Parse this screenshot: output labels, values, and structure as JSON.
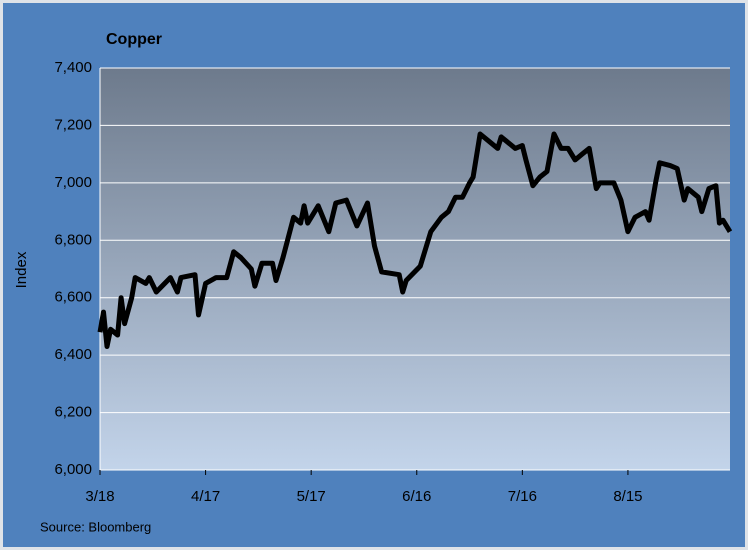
{
  "chart_data": {
    "type": "line",
    "title": "Copper",
    "y_label": "Index",
    "source": "Source: Bloomberg",
    "xlim": [
      "3/18",
      "9/13"
    ],
    "xticks": [
      "3/18",
      "4/17",
      "5/17",
      "6/16",
      "7/16",
      "8/15"
    ],
    "ylim": [
      6000,
      7400
    ],
    "yticks": [
      {
        "value": 6000,
        "label": "6,000"
      },
      {
        "value": 6200,
        "label": "6,200"
      },
      {
        "value": 6400,
        "label": "6,400"
      },
      {
        "value": 6600,
        "label": "6,600"
      },
      {
        "value": 6800,
        "label": "6,800"
      },
      {
        "value": 7000,
        "label": "7,000"
      },
      {
        "value": 7200,
        "label": "7,200"
      },
      {
        "value": 7400,
        "label": "7,400"
      }
    ],
    "grid": true,
    "series": [
      {
        "name": "Copper",
        "color": "#000000",
        "x": [
          "3/18",
          "3/19",
          "3/20",
          "3/21",
          "3/23",
          "3/24",
          "3/25",
          "3/27",
          "3/28",
          "3/31",
          "4/1",
          "4/3",
          "4/7",
          "4/9",
          "4/10",
          "4/14",
          "4/15",
          "4/17",
          "4/20",
          "4/23",
          "4/25",
          "4/27",
          "4/30",
          "5/1",
          "5/3",
          "5/6",
          "5/7",
          "5/9",
          "5/12",
          "5/14",
          "5/15",
          "5/16",
          "5/19",
          "5/22",
          "5/24",
          "5/27",
          "5/30",
          "6/2",
          "6/4",
          "6/6",
          "6/11",
          "6/12",
          "6/13",
          "6/17",
          "6/20",
          "6/23",
          "6/25",
          "6/27",
          "6/29",
          "7/1",
          "7/2",
          "7/4",
          "7/7",
          "7/9",
          "7/10",
          "7/14",
          "7/16",
          "7/17",
          "7/19",
          "7/21",
          "7/23",
          "7/25",
          "7/27",
          "7/29",
          "7/31",
          "8/2",
          "8/4",
          "8/6",
          "8/7",
          "8/11",
          "8/13",
          "8/15",
          "8/17",
          "8/20",
          "8/21",
          "8/23",
          "8/24",
          "8/27",
          "8/29",
          "8/31",
          "9/1",
          "9/4",
          "9/5",
          "9/7",
          "9/9",
          "9/10",
          "9/11",
          "9/13"
        ],
        "values": [
          6480,
          6550,
          6430,
          6490,
          6470,
          6600,
          6510,
          6600,
          6670,
          6650,
          6670,
          6620,
          6670,
          6620,
          6670,
          6680,
          6540,
          6650,
          6670,
          6670,
          6760,
          6740,
          6700,
          6640,
          6720,
          6720,
          6660,
          6740,
          6880,
          6860,
          6920,
          6860,
          6920,
          6830,
          6930,
          6940,
          6850,
          6930,
          6780,
          6690,
          6680,
          6620,
          6660,
          6710,
          6830,
          6880,
          6900,
          6950,
          6950,
          7000,
          7020,
          7170,
          7140,
          7120,
          7160,
          7120,
          7130,
          7080,
          6990,
          7020,
          7040,
          7170,
          7120,
          7120,
          7080,
          7100,
          7120,
          6980,
          7000,
          7000,
          6940,
          6830,
          6880,
          6900,
          6870,
          7010,
          7070,
          7060,
          7050,
          6940,
          6980,
          6950,
          6900,
          6980,
          6990,
          6860,
          6870,
          6830
        ]
      }
    ]
  }
}
